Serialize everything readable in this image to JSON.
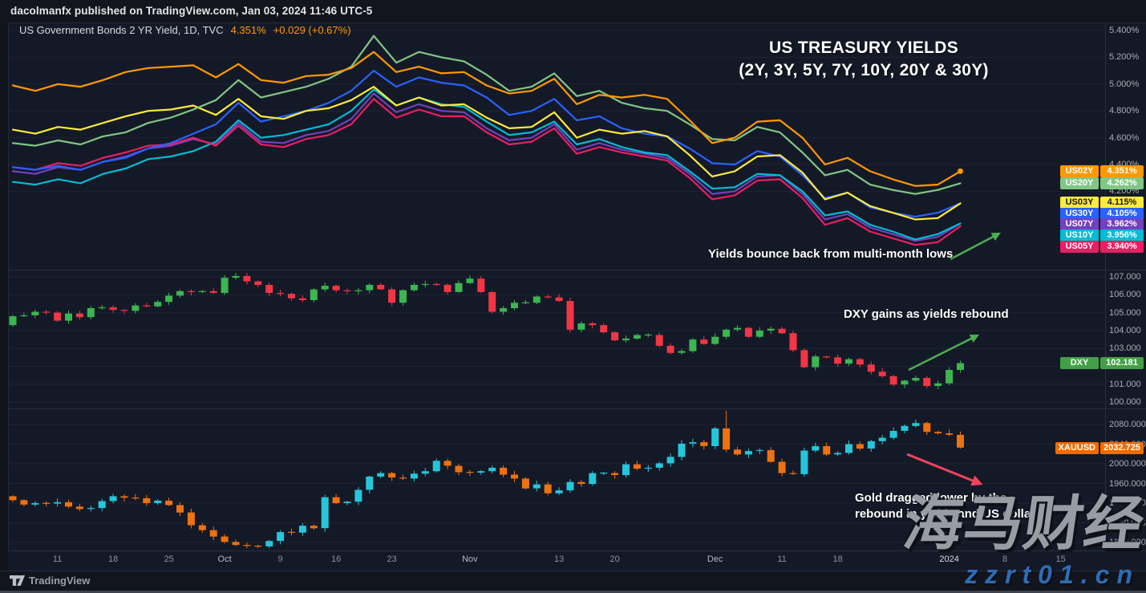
{
  "header": {
    "publish_line": "dacolmanfx published on TradingView.com, Jan 03, 2024 11:46 UTC-5"
  },
  "toolbar": {
    "brand": "TradingView"
  },
  "watermark": {
    "brand": "海马财经",
    "site": "zzrt01.cn"
  },
  "x_axis": {
    "labels": [
      {
        "text": "11",
        "i": 4
      },
      {
        "text": "18",
        "i": 9
      },
      {
        "text": "25",
        "i": 14
      },
      {
        "text": "Oct",
        "i": 19,
        "month": true
      },
      {
        "text": "9",
        "i": 24
      },
      {
        "text": "16",
        "i": 29
      },
      {
        "text": "23",
        "i": 34
      },
      {
        "text": "Nov",
        "i": 41,
        "month": true
      },
      {
        "text": "13",
        "i": 49
      },
      {
        "text": "20",
        "i": 54
      },
      {
        "text": "Dec",
        "i": 63,
        "month": true
      },
      {
        "text": "11",
        "i": 69
      },
      {
        "text": "18",
        "i": 74
      },
      {
        "text": "2024",
        "i": 84,
        "bright": true
      },
      {
        "text": "8",
        "i": 89
      },
      {
        "text": "15",
        "i": 94
      }
    ]
  },
  "chart_data": {
    "panels": [
      {
        "id": "yields",
        "type": "line",
        "title": "US Government Bonds 2 YR Yield, 1D, TVC",
        "last": "4.351%",
        "change": "+0.029 (+0.67%)",
        "annotations": {
          "headline1": "US TREASURY YIELDS",
          "headline2": "(2Y, 3Y, 5Y, 7Y, 10Y, 20Y & 30Y)",
          "note": "Yields bounce back from multi-month lows"
        },
        "ylim": [
          3.63,
          5.46
        ],
        "y_ticks": [
          {
            "label": "5.400%",
            "v": 5.4
          },
          {
            "label": "5.200%",
            "v": 5.2
          },
          {
            "label": "5.000%",
            "v": 5.0
          },
          {
            "label": "4.800%",
            "v": 4.8
          },
          {
            "label": "4.600%",
            "v": 4.6
          },
          {
            "label": "4.400%",
            "v": 4.4
          },
          {
            "label": "4.200%",
            "v": 4.2
          }
        ],
        "series": [
          {
            "name": "US07Y",
            "color": "#7340bf",
            "value": 3.962,
            "value_label": "3.962%",
            "values": [
              4.35,
              4.33,
              4.38,
              4.36,
              4.42,
              4.46,
              4.52,
              4.54,
              4.59,
              4.55,
              4.71,
              4.57,
              4.56,
              4.62,
              4.65,
              4.74,
              4.93,
              4.79,
              4.85,
              4.8,
              4.79,
              4.67,
              4.58,
              4.6,
              4.7,
              4.51,
              4.56,
              4.51,
              4.48,
              4.45,
              4.33,
              4.18,
              4.2,
              4.31,
              4.32,
              4.18,
              3.99,
              4.03,
              3.93,
              3.88,
              3.83,
              3.86,
              3.96
            ]
          },
          {
            "name": "US10Y",
            "color": "#00bcd4",
            "value": 3.956,
            "value_label": "3.956%",
            "values": [
              4.27,
              4.25,
              4.29,
              4.26,
              4.33,
              4.37,
              4.44,
              4.46,
              4.5,
              4.57,
              4.73,
              4.6,
              4.62,
              4.66,
              4.7,
              4.8,
              4.96,
              4.84,
              4.9,
              4.85,
              4.83,
              4.72,
              4.62,
              4.64,
              4.72,
              4.55,
              4.59,
              4.53,
              4.49,
              4.47,
              4.35,
              4.22,
              4.23,
              4.33,
              4.32,
              4.2,
              4.02,
              4.05,
              3.95,
              3.9,
              3.84,
              3.88,
              3.96
            ]
          },
          {
            "name": "US05Y",
            "color": "#e91e63",
            "value": 3.94,
            "value_label": "3.940%",
            "values": [
              4.38,
              4.36,
              4.41,
              4.39,
              4.45,
              4.49,
              4.54,
              4.55,
              4.6,
              4.54,
              4.69,
              4.55,
              4.53,
              4.59,
              4.62,
              4.7,
              4.89,
              4.75,
              4.81,
              4.76,
              4.76,
              4.64,
              4.55,
              4.57,
              4.67,
              4.48,
              4.53,
              4.49,
              4.46,
              4.43,
              4.3,
              4.14,
              4.17,
              4.28,
              4.29,
              4.15,
              3.95,
              4.0,
              3.9,
              3.85,
              3.8,
              3.82,
              3.94
            ]
          },
          {
            "name": "US30Y",
            "color": "#2962ff",
            "value": 4.105,
            "value_label": "4.105%",
            "values": [
              4.38,
              4.36,
              4.39,
              4.36,
              4.42,
              4.45,
              4.52,
              4.56,
              4.63,
              4.7,
              4.86,
              4.72,
              4.76,
              4.8,
              4.86,
              4.95,
              5.1,
              4.98,
              5.05,
              5.01,
              4.99,
              4.9,
              4.77,
              4.8,
              4.89,
              4.73,
              4.76,
              4.67,
              4.63,
              4.61,
              4.52,
              4.41,
              4.4,
              4.5,
              4.46,
              4.32,
              4.15,
              4.19,
              4.08,
              4.04,
              4.01,
              4.04,
              4.11
            ]
          },
          {
            "name": "US03Y",
            "color": "#ffeb3b",
            "value": 4.115,
            "value_label": "4.115%",
            "values": [
              4.66,
              4.63,
              4.68,
              4.66,
              4.71,
              4.76,
              4.8,
              4.81,
              4.84,
              4.77,
              4.89,
              4.76,
              4.74,
              4.8,
              4.82,
              4.88,
              4.98,
              4.84,
              4.9,
              4.84,
              4.85,
              4.75,
              4.67,
              4.68,
              4.79,
              4.6,
              4.66,
              4.63,
              4.65,
              4.61,
              4.47,
              4.31,
              4.35,
              4.46,
              4.47,
              4.34,
              4.14,
              4.19,
              4.09,
              4.04,
              3.99,
              4.0,
              4.11
            ]
          },
          {
            "name": "US20Y",
            "color": "#81c784",
            "value": 4.262,
            "value_label": "4.262%",
            "values": [
              4.56,
              4.54,
              4.58,
              4.55,
              4.61,
              4.64,
              4.71,
              4.75,
              4.81,
              4.88,
              5.03,
              4.9,
              4.94,
              4.98,
              5.04,
              5.13,
              5.36,
              5.16,
              5.24,
              5.2,
              5.17,
              5.07,
              4.95,
              4.98,
              5.08,
              4.91,
              4.95,
              4.86,
              4.82,
              4.8,
              4.7,
              4.59,
              4.58,
              4.68,
              4.64,
              4.49,
              4.32,
              4.36,
              4.25,
              4.21,
              4.18,
              4.21,
              4.26
            ]
          },
          {
            "name": "US02Y",
            "color": "#ff9800",
            "value": 4.351,
            "value_label": "4.351%",
            "end_dot": true,
            "values": [
              4.99,
              4.95,
              5.0,
              4.98,
              5.03,
              5.09,
              5.12,
              5.13,
              5.14,
              5.05,
              5.15,
              5.03,
              5.01,
              5.06,
              5.07,
              5.12,
              5.24,
              5.09,
              5.13,
              5.08,
              5.09,
              4.99,
              4.93,
              4.95,
              5.04,
              4.85,
              4.92,
              4.9,
              4.92,
              4.89,
              4.73,
              4.56,
              4.6,
              4.72,
              4.73,
              4.6,
              4.4,
              4.45,
              4.35,
              4.29,
              4.24,
              4.25,
              4.35
            ]
          }
        ]
      },
      {
        "id": "dxy",
        "type": "candlestick",
        "symbol": "DXY",
        "value": 102.181,
        "value_label": "102.181",
        "badge_color": "#43a047",
        "up_color": "#3bb650",
        "down_color": "#f23645",
        "annotation": "DXY gains as yields rebound",
        "ylim": [
          99.7,
          107.4
        ],
        "y_ticks": [
          {
            "label": "107.000",
            "v": 107
          },
          {
            "label": "106.000",
            "v": 106
          },
          {
            "label": "105.000",
            "v": 105
          },
          {
            "label": "104.000",
            "v": 104
          },
          {
            "label": "103.000",
            "v": 103
          },
          {
            "label": "102.000",
            "v": 102
          },
          {
            "label": "101.000",
            "v": 101
          },
          {
            "label": "100.000",
            "v": 100
          }
        ],
        "first_open": 104.3,
        "wick_unit": 0.16,
        "wicks": "estimated",
        "closes": [
          104.8,
          104.85,
          105.05,
          105.0,
          104.55,
          104.95,
          104.75,
          105.25,
          105.3,
          105.15,
          105.1,
          105.4,
          105.35,
          105.6,
          105.95,
          106.2,
          106.15,
          106.2,
          106.1,
          106.95,
          107.05,
          106.75,
          106.55,
          106.1,
          106.05,
          105.8,
          105.7,
          106.3,
          106.5,
          106.25,
          106.2,
          106.25,
          106.55,
          106.3,
          105.55,
          106.25,
          106.55,
          106.6,
          106.55,
          106.15,
          106.65,
          106.9,
          106.15,
          105.05,
          105.25,
          105.55,
          105.55,
          105.9,
          105.85,
          105.65,
          104.05,
          104.4,
          104.3,
          103.9,
          103.45,
          103.55,
          103.75,
          103.75,
          103.15,
          102.75,
          102.85,
          103.5,
          103.25,
          103.65,
          104.05,
          104.15,
          103.65,
          104.0,
          104.1,
          103.85,
          102.9,
          101.95,
          102.55,
          102.5,
          102.15,
          102.4,
          102.1,
          101.7,
          101.45,
          100.98,
          101.2,
          101.35,
          100.9,
          101.05,
          101.8,
          102.18
        ]
      },
      {
        "id": "gold",
        "type": "candlestick",
        "symbol": "XAUUSD",
        "value": 2032.725,
        "value_label": "2032.725",
        "badge_color": "#ef6c00",
        "up_color": "#26c6da",
        "down_color": "#ee7210",
        "annotation": "Gold dragged lower by the\nrebound in yields and US dollar",
        "ylim": [
          1827,
          2111
        ],
        "y_ticks": [
          {
            "label": "2080.000",
            "v": 2080
          },
          {
            "label": "2040.000",
            "v": 2040
          },
          {
            "label": "2000.000",
            "v": 2000
          },
          {
            "label": "1960.000",
            "v": 1960
          },
          {
            "label": "1920.000",
            "v": 1920
          },
          {
            "label": "1880.000",
            "v": 1880
          },
          {
            "label": "1840.000",
            "v": 1840
          }
        ],
        "first_open": 1934,
        "wick_unit": 6.5,
        "wicks": "estimated",
        "high_overrides": {
          "64": 2108
        },
        "closes": [
          1926,
          1917,
          1920,
          1919,
          1922,
          1913,
          1908,
          1910,
          1924,
          1934,
          1931,
          1930,
          1920,
          1925,
          1916,
          1901,
          1875,
          1865,
          1852,
          1841,
          1835,
          1833,
          1832,
          1843,
          1861,
          1860,
          1874,
          1869,
          1932,
          1920,
          1923,
          1947,
          1974,
          1981,
          1972,
          1970,
          1980,
          1985,
          2006,
          1996,
          1983,
          1982,
          1985,
          1992,
          1978,
          1970,
          1950,
          1958,
          1940,
          1946,
          1963,
          1959,
          1981,
          1981,
          1977,
          1999,
          1990,
          1992,
          2001,
          2014,
          2041,
          2044,
          2036,
          2072,
          2029,
          2019,
          2026,
          2028,
          2004,
          1981,
          1979,
          2027,
          2036,
          2019,
          2022,
          2040,
          2031,
          2046,
          2053,
          2067,
          2077,
          2083,
          2065,
          2062,
          2059,
          2033
        ]
      }
    ]
  }
}
